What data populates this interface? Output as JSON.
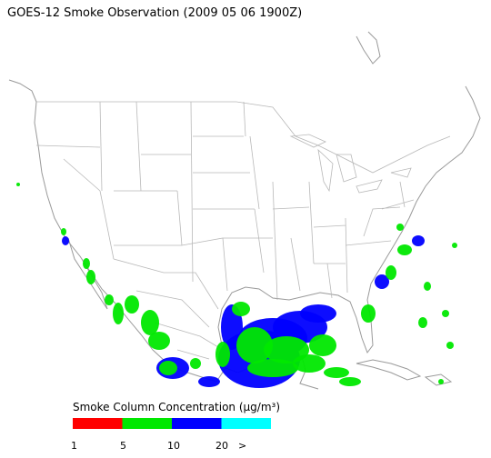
{
  "title": "GOES-12 Smoke Observation (2009 05 06  1900Z)",
  "legend": {
    "title": "Smoke Column Concentration (μg/m³)",
    "labels": [
      "1",
      "5",
      "10",
      "20",
      ">"
    ],
    "colors": [
      "#ff0000",
      "#00e800",
      "#0000ff",
      "#00ffff"
    ]
  }
}
